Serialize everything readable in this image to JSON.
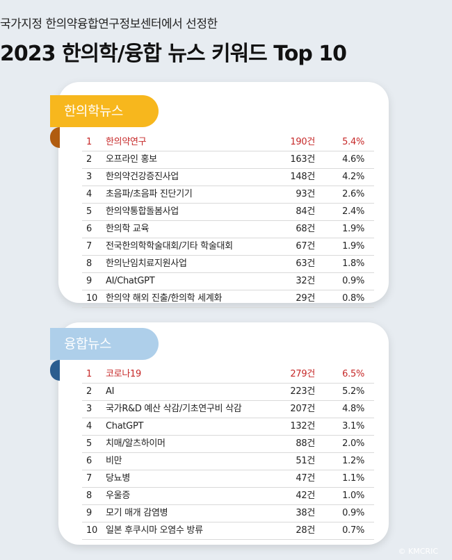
{
  "header": {
    "subtitle": "국가지정 한의약융합연구정보센터에서 선정한",
    "title": "2023 한의학/융합 뉴스 키워드 Top 10"
  },
  "colors": {
    "accent_red": "#c62828",
    "ribbon_yellow": "#f7b71d",
    "ribbon_blue": "#aecfea"
  },
  "section1": {
    "label": "한의학뉴스",
    "rows": [
      {
        "rank": "1",
        "keyword": "한의약연구",
        "count": "190건",
        "pct": "5.4%"
      },
      {
        "rank": "2",
        "keyword": "오프라인 홍보",
        "count": "163건",
        "pct": "4.6%"
      },
      {
        "rank": "3",
        "keyword": "한의약건강증진사업",
        "count": "148건",
        "pct": "4.2%"
      },
      {
        "rank": "4",
        "keyword": "초음파/초음파 진단기기",
        "count": "93건",
        "pct": "2.6%"
      },
      {
        "rank": "5",
        "keyword": "한의약통합돌봄사업",
        "count": "84건",
        "pct": "2.4%"
      },
      {
        "rank": "6",
        "keyword": "한의학 교육",
        "count": "68건",
        "pct": "1.9%"
      },
      {
        "rank": "7",
        "keyword": "전국한의학학술대회/기타 학술대회",
        "count": "67건",
        "pct": "1.9%"
      },
      {
        "rank": "8",
        "keyword": "한의난임치료지원사업",
        "count": "63건",
        "pct": "1.8%"
      },
      {
        "rank": "9",
        "keyword": "AI/ChatGPT",
        "count": "32건",
        "pct": "0.9%"
      },
      {
        "rank": "10",
        "keyword": "한의약 해외 진출/한의학 세계화",
        "count": "29건",
        "pct": "0.8%"
      }
    ]
  },
  "section2": {
    "label": "융합뉴스",
    "rows": [
      {
        "rank": "1",
        "keyword": "코로나19",
        "count": "279건",
        "pct": "6.5%"
      },
      {
        "rank": "2",
        "keyword": "AI",
        "count": "223건",
        "pct": "5.2%"
      },
      {
        "rank": "3",
        "keyword": "국가R&D 예산 삭감/기초연구비 삭감",
        "count": "207건",
        "pct": "4.8%"
      },
      {
        "rank": "4",
        "keyword": "ChatGPT",
        "count": "132건",
        "pct": "3.1%"
      },
      {
        "rank": "5",
        "keyword": "치매/알츠하이머",
        "count": "88건",
        "pct": "2.0%"
      },
      {
        "rank": "6",
        "keyword": "비만",
        "count": "51건",
        "pct": "1.2%"
      },
      {
        "rank": "7",
        "keyword": "당뇨병",
        "count": "47건",
        "pct": "1.1%"
      },
      {
        "rank": "8",
        "keyword": "우울증",
        "count": "42건",
        "pct": "1.0%"
      },
      {
        "rank": "9",
        "keyword": "모기 매개 감염병",
        "count": "38건",
        "pct": "0.9%"
      },
      {
        "rank": "10",
        "keyword": "일본 후쿠시마 오염수 방류",
        "count": "28건",
        "pct": "0.7%"
      }
    ]
  },
  "footer": {
    "copyright": "© KMCRIC"
  }
}
